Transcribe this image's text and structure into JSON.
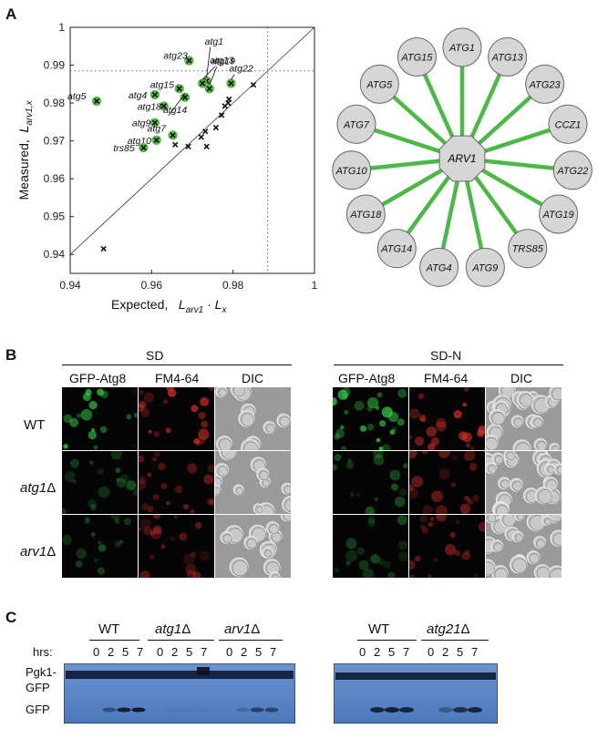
{
  "panels": {
    "a": "A",
    "b": "B",
    "c": "C"
  },
  "colors": {
    "hit_green": "#5cb84a",
    "edge_green": "#4cb848",
    "node_fill": "#d6d6d6",
    "gfp_green": "#39d24b",
    "fm464_red": "#e03228",
    "blot_blue": "#5a86c4"
  },
  "chart_data": {
    "type": "scatter",
    "xlabel": "Expected,",
    "xlabel_formula": "L arv1 · L x",
    "ylabel": "Measured,",
    "ylabel_formula": "L arv1,x",
    "xlim": [
      0.94,
      1.0
    ],
    "ylim": [
      0.935,
      1.0
    ],
    "xticks": [
      "0.94",
      "0.96",
      "0.98",
      "1"
    ],
    "yticks": [
      "0.94",
      "0.95",
      "0.96",
      "0.97",
      "0.98",
      "0.99",
      "1"
    ],
    "diagonal": true,
    "threshold_lines": {
      "x": 0.9885,
      "y": 0.9885,
      "style": "dotted"
    },
    "hits": [
      {
        "label": "atg5",
        "x": 0.9465,
        "y": 0.9805
      },
      {
        "label": "atg23",
        "x": 0.9692,
        "y": 0.9912
      },
      {
        "label": "atg1",
        "x": 0.9735,
        "y": 0.9858
      },
      {
        "label": "atg19",
        "x": 0.9742,
        "y": 0.9838
      },
      {
        "label": "atg13",
        "x": 0.9725,
        "y": 0.9852
      },
      {
        "label": "atg22",
        "x": 0.9795,
        "y": 0.9852
      },
      {
        "label": "atg4",
        "x": 0.9608,
        "y": 0.9822
      },
      {
        "label": "atg15",
        "x": 0.9668,
        "y": 0.9838
      },
      {
        "label": "atg18",
        "x": 0.963,
        "y": 0.9792
      },
      {
        "label": "atg14",
        "x": 0.9682,
        "y": 0.9815
      },
      {
        "label": "atg9",
        "x": 0.9608,
        "y": 0.9748
      },
      {
        "label": "atg7",
        "x": 0.9652,
        "y": 0.9715
      },
      {
        "label": "atg10",
        "x": 0.9612,
        "y": 0.9702
      },
      {
        "label": "trs85",
        "x": 0.958,
        "y": 0.9682
      }
    ],
    "others": [
      {
        "x": 0.9482,
        "y": 0.9415
      },
      {
        "x": 0.9658,
        "y": 0.969
      },
      {
        "x": 0.969,
        "y": 0.9685
      },
      {
        "x": 0.9722,
        "y": 0.971
      },
      {
        "x": 0.9732,
        "y": 0.9725
      },
      {
        "x": 0.9735,
        "y": 0.9685
      },
      {
        "x": 0.9758,
        "y": 0.9735
      },
      {
        "x": 0.9772,
        "y": 0.9768
      },
      {
        "x": 0.978,
        "y": 0.9792
      },
      {
        "x": 0.9788,
        "y": 0.98
      },
      {
        "x": 0.979,
        "y": 0.981
      },
      {
        "x": 0.985,
        "y": 0.9848
      }
    ]
  },
  "network": {
    "center": "ARV1",
    "nodes": [
      "ATG1",
      "ATG13",
      "ATG23",
      "CCZ1",
      "ATG22",
      "ATG19",
      "TRS85",
      "ATG9",
      "ATG4",
      "ATG14",
      "ATG18",
      "ATG10",
      "ATG7",
      "ATG5",
      "ATG15"
    ]
  },
  "panel_b": {
    "conditions": [
      "SD",
      "SD-N"
    ],
    "channels": [
      "GFP-Atg8",
      "FM4-64",
      "DIC"
    ],
    "strains": [
      {
        "name": "WT",
        "suffix": ""
      },
      {
        "name": "atg1",
        "suffix": "Δ"
      },
      {
        "name": "arv1",
        "suffix": "Δ"
      }
    ]
  },
  "panel_c": {
    "groups_left": [
      {
        "name": "WT",
        "suffix": ""
      },
      {
        "name": "atg1",
        "suffix": "Δ"
      },
      {
        "name": "arv1",
        "suffix": "Δ"
      }
    ],
    "groups_right": [
      {
        "name": "WT",
        "suffix": ""
      },
      {
        "name": "atg21",
        "suffix": "Δ"
      }
    ],
    "hrs_label": "hrs:",
    "timepoints": [
      "0",
      "2",
      "5",
      "7"
    ],
    "band_labels": [
      "Pgk1-",
      "GFP",
      "GFP"
    ]
  }
}
